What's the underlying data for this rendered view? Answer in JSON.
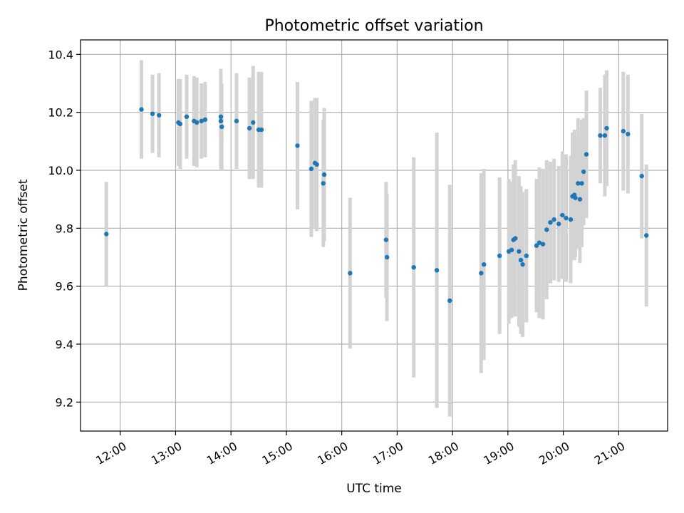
{
  "chart_data": {
    "type": "scatter",
    "title": "Photometric offset variation",
    "xlabel": "UTC time",
    "ylabel": "Photometric offset",
    "xlim": [
      "11:17",
      "21:53"
    ],
    "ylim": [
      9.1,
      10.45
    ],
    "grid": true,
    "x_ticks": [
      "12:00",
      "13:00",
      "14:00",
      "15:00",
      "16:00",
      "17:00",
      "18:00",
      "19:00",
      "20:00",
      "21:00"
    ],
    "y_ticks": [
      "9.2",
      "9.4",
      "9.6",
      "9.8",
      "10.0",
      "10.2",
      "10.4"
    ],
    "colors": {
      "point": "#1f77b4",
      "errorbar": "#d3d3d3"
    },
    "series": [
      {
        "x": [
          "11:45",
          "12:23",
          "12:35",
          "12:42",
          "13:03",
          "13:05",
          "13:12",
          "13:20",
          "13:23",
          "13:28",
          "13:32",
          "13:49",
          "13:49",
          "13:50",
          "14:06",
          "14:20",
          "14:24",
          "14:30",
          "14:33",
          "15:12",
          "15:27",
          "15:31",
          "15:33",
          "15:40",
          "15:41",
          "16:09",
          "16:48",
          "16:49",
          "17:18",
          "17:43",
          "17:57",
          "18:31",
          "18:34",
          "18:51",
          "19:01",
          "19:04",
          "19:06",
          "19:08",
          "19:12",
          "19:14",
          "19:16",
          "19:20",
          "19:31",
          "19:34",
          "19:38",
          "19:42",
          "19:46",
          "19:50",
          "19:55",
          "19:59",
          "20:03",
          "20:08",
          "20:10",
          "20:12",
          "20:13",
          "20:16",
          "20:18",
          "20:20",
          "20:22",
          "20:25",
          "20:40",
          "20:45",
          "20:47",
          "21:05",
          "21:10",
          "21:25",
          "21:30"
        ],
        "y": [
          9.78,
          10.21,
          10.195,
          10.19,
          10.165,
          10.16,
          10.185,
          10.17,
          10.165,
          10.17,
          10.175,
          10.185,
          10.17,
          10.15,
          10.17,
          10.145,
          10.165,
          10.14,
          10.14,
          10.085,
          10.005,
          10.025,
          10.02,
          9.955,
          9.985,
          9.645,
          9.76,
          9.7,
          9.665,
          9.655,
          9.55,
          9.645,
          9.675,
          9.705,
          9.72,
          9.725,
          9.76,
          9.765,
          9.72,
          9.69,
          9.675,
          9.705,
          9.74,
          9.75,
          9.745,
          9.795,
          9.82,
          9.83,
          9.815,
          9.845,
          9.835,
          9.83,
          9.91,
          9.915,
          9.905,
          9.955,
          9.9,
          9.955,
          9.995,
          10.055,
          10.12,
          10.12,
          10.145,
          10.135,
          10.125,
          9.98,
          9.775
        ],
        "yerr": [
          0.18,
          0.17,
          0.135,
          0.145,
          0.15,
          0.155,
          0.145,
          0.155,
          0.155,
          0.13,
          0.13,
          0.165,
          0.165,
          0.15,
          0.165,
          0.175,
          0.195,
          0.2,
          0.2,
          0.22,
          0.235,
          0.225,
          0.23,
          0.22,
          0.23,
          0.26,
          0.2,
          0.22,
          0.38,
          0.475,
          0.4,
          0.345,
          0.33,
          0.27,
          0.25,
          0.235,
          0.26,
          0.27,
          0.26,
          0.255,
          0.25,
          0.23,
          0.23,
          0.26,
          0.26,
          0.24,
          0.21,
          0.21,
          0.2,
          0.22,
          0.22,
          0.22,
          0.22,
          0.225,
          0.205,
          0.225,
          0.22,
          0.22,
          0.185,
          0.22,
          0.165,
          0.21,
          0.2,
          0.205,
          0.205,
          0.215,
          0.245
        ]
      }
    ]
  }
}
